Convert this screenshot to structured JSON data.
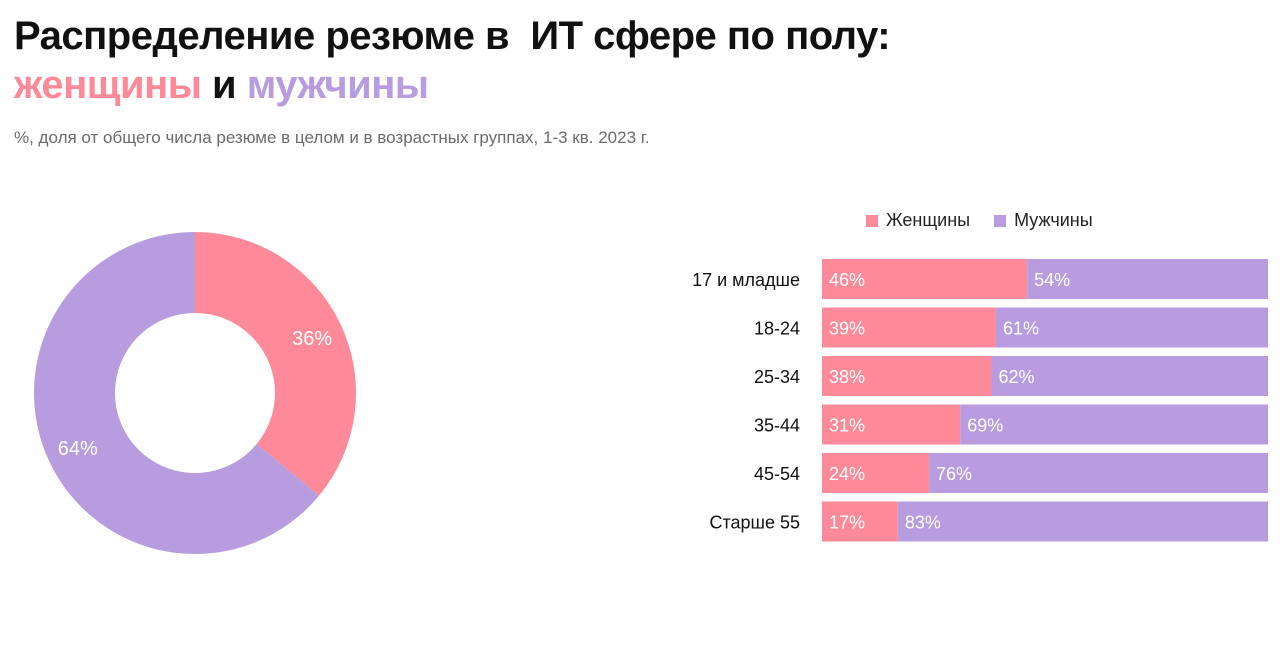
{
  "header": {
    "title_line1": "Распределение резюме в  ИТ сфере по полу:",
    "title_women": "женщины",
    "title_and": " и ",
    "title_men": "мужчины",
    "subtitle": "%, доля от общего числа резюме в целом и в возрастных группах, 1-3 кв. 2023 г."
  },
  "colors": {
    "women": "#fe8a99",
    "men": "#b79ce0",
    "text": "#111111"
  },
  "chart_data": [
    {
      "type": "pie",
      "variant": "donut",
      "categories": [
        "Женщины",
        "Мужчины"
      ],
      "values": [
        36,
        64
      ],
      "labels": [
        "36%",
        "64%"
      ]
    },
    {
      "type": "bar",
      "orientation": "horizontal",
      "stacked": true,
      "normalized": true,
      "categories": [
        "17 и младше",
        "18-24",
        "25-34",
        "35-44",
        "45-54",
        "Старше 55"
      ],
      "series": [
        {
          "name": "Женщины",
          "values": [
            46,
            39,
            38,
            31,
            24,
            17
          ]
        },
        {
          "name": "Мужчины",
          "values": [
            54,
            61,
            62,
            69,
            76,
            83
          ]
        }
      ],
      "xlim": [
        0,
        100
      ],
      "legend": {
        "position": "top"
      }
    }
  ]
}
